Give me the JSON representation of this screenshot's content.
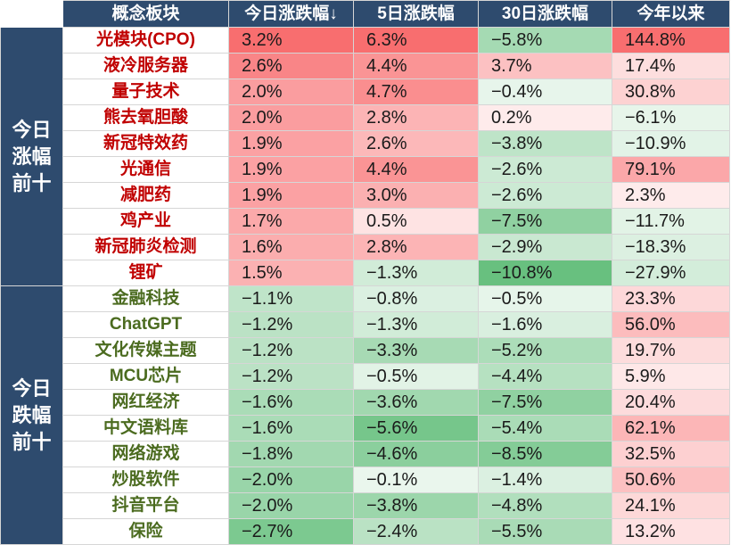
{
  "header": {
    "blank": "",
    "name": "概念板块",
    "today": "今日涨跌幅↓",
    "d5": "5日涨跌幅",
    "d30": "30日涨跌幅",
    "ytd": "今年以来"
  },
  "groups": [
    {
      "label": "今日涨幅前十",
      "direction": "up",
      "rows": [
        {
          "name": "光模块(CPO)",
          "today": "3.2%",
          "d5": "6.3%",
          "d30": "−5.8%",
          "ytd": "144.8%"
        },
        {
          "name": "液冷服务器",
          "today": "2.6%",
          "d5": "4.4%",
          "d30": "3.7%",
          "ytd": "17.4%"
        },
        {
          "name": "量子技术",
          "today": "2.0%",
          "d5": "4.7%",
          "d30": "−0.4%",
          "ytd": "30.8%"
        },
        {
          "name": "熊去氧胆酸",
          "today": "2.0%",
          "d5": "2.8%",
          "d30": "0.2%",
          "ytd": "−6.1%"
        },
        {
          "name": "新冠特效药",
          "today": "1.9%",
          "d5": "2.6%",
          "d30": "−3.8%",
          "ytd": "−10.9%"
        },
        {
          "name": "光通信",
          "today": "1.9%",
          "d5": "4.4%",
          "d30": "−2.6%",
          "ytd": "79.1%"
        },
        {
          "name": "减肥药",
          "today": "1.9%",
          "d5": "3.0%",
          "d30": "−2.6%",
          "ytd": "2.3%"
        },
        {
          "name": "鸡产业",
          "today": "1.7%",
          "d5": "0.5%",
          "d30": "−7.5%",
          "ytd": "−11.7%"
        },
        {
          "name": "新冠肺炎检测",
          "today": "1.6%",
          "d5": "2.8%",
          "d30": "−2.9%",
          "ytd": "−18.3%"
        },
        {
          "name": "锂矿",
          "today": "1.5%",
          "d5": "−1.3%",
          "d30": "−10.8%",
          "ytd": "−27.9%"
        }
      ]
    },
    {
      "label": "今日跌幅前十",
      "direction": "down",
      "rows": [
        {
          "name": "金融科技",
          "today": "−1.1%",
          "d5": "−0.8%",
          "d30": "−0.5%",
          "ytd": "23.3%"
        },
        {
          "name": "ChatGPT",
          "today": "−1.2%",
          "d5": "−1.3%",
          "d30": "−1.6%",
          "ytd": "56.0%"
        },
        {
          "name": "文化传媒主题",
          "today": "−1.2%",
          "d5": "−3.3%",
          "d30": "−5.2%",
          "ytd": "19.7%"
        },
        {
          "name": "MCU芯片",
          "today": "−1.2%",
          "d5": "−0.5%",
          "d30": "−4.4%",
          "ytd": "5.9%"
        },
        {
          "name": "网红经济",
          "today": "−1.6%",
          "d5": "−3.6%",
          "d30": "−7.5%",
          "ytd": "20.4%"
        },
        {
          "name": "中文语料库",
          "today": "−1.6%",
          "d5": "−5.6%",
          "d30": "−5.4%",
          "ytd": "62.1%"
        },
        {
          "name": "网络游戏",
          "today": "−1.8%",
          "d5": "−4.6%",
          "d30": "−8.5%",
          "ytd": "32.5%"
        },
        {
          "name": "炒股软件",
          "today": "−2.0%",
          "d5": "−0.1%",
          "d30": "−1.4%",
          "ytd": "50.6%"
        },
        {
          "name": "抖音平台",
          "today": "−2.0%",
          "d5": "−3.8%",
          "d30": "−4.8%",
          "ytd": "24.1%"
        },
        {
          "name": "保险",
          "today": "−2.7%",
          "d5": "−2.4%",
          "d30": "−5.5%",
          "ytd": "13.2%"
        }
      ]
    }
  ],
  "chart_data": {
    "type": "table",
    "columns": [
      "概念板块",
      "今日涨跌幅↓",
      "5日涨跌幅",
      "30日涨跌幅",
      "今年以来"
    ],
    "row_groups": [
      "今日涨幅前十",
      "今日跌幅前十"
    ],
    "categories": [
      "光模块(CPO)",
      "液冷服务器",
      "量子技术",
      "熊去氧胆酸",
      "新冠特效药",
      "光通信",
      "减肥药",
      "鸡产业",
      "新冠肺炎检测",
      "锂矿",
      "金融科技",
      "ChatGPT",
      "文化传媒主题",
      "MCU芯片",
      "网红经济",
      "中文语料库",
      "网络游戏",
      "炒股软件",
      "抖音平台",
      "保险"
    ],
    "series": [
      {
        "name": "今日涨跌幅↓",
        "values": [
          3.2,
          2.6,
          2.0,
          2.0,
          1.9,
          1.9,
          1.9,
          1.7,
          1.6,
          1.5,
          -1.1,
          -1.2,
          -1.2,
          -1.2,
          -1.6,
          -1.6,
          -1.8,
          -2.0,
          -2.0,
          -2.7
        ]
      },
      {
        "name": "5日涨跌幅",
        "values": [
          6.3,
          4.4,
          4.7,
          2.8,
          2.6,
          4.4,
          3.0,
          0.5,
          2.8,
          -1.3,
          -0.8,
          -1.3,
          -3.3,
          -0.5,
          -3.6,
          -5.6,
          -4.6,
          -0.1,
          -3.8,
          -2.4
        ]
      },
      {
        "name": "30日涨跌幅",
        "values": [
          -5.8,
          3.7,
          -0.4,
          0.2,
          -3.8,
          -2.6,
          -2.6,
          -7.5,
          -2.9,
          -10.8,
          -0.5,
          -1.6,
          -5.2,
          -4.4,
          -7.5,
          -5.4,
          -8.5,
          -1.4,
          -4.8,
          -5.5
        ]
      },
      {
        "name": "今年以来",
        "values": [
          144.8,
          17.4,
          30.8,
          -6.1,
          -10.9,
          79.1,
          2.3,
          -11.7,
          -18.3,
          -27.9,
          23.3,
          56.0,
          19.7,
          5.9,
          20.4,
          62.1,
          32.5,
          50.6,
          24.1,
          13.2
        ]
      }
    ],
    "colors": {
      "header": "#2e4b6e",
      "positive": "#f8696b",
      "negative": "#63be7b",
      "neutral": "#ffffff",
      "up_name": "#c00000",
      "down_name": "#4b6b1f"
    }
  }
}
